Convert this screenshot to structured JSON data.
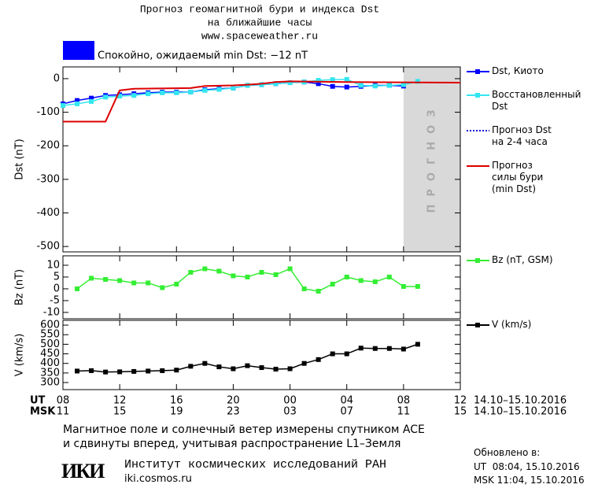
{
  "header": {
    "title": "Прогноз геомагнитной бури и индекса Dst",
    "subtitle": "на ближайшие часы",
    "url": "www.spaceweather.ru",
    "status": "Спокойно, ожидаемый min Dst: −12 nT",
    "status_color": "#0000ff"
  },
  "chart_data": [
    {
      "type": "line",
      "ylabel": "Dst (nT)",
      "xlim": [
        0,
        28
      ],
      "ylim": [
        -516,
        35
      ],
      "yticks": [
        0,
        -100,
        -200,
        -300,
        -400,
        -500
      ],
      "forecast_region": {
        "x": [
          24,
          28
        ],
        "label": "прогноз",
        "color": "#d9d9d9"
      },
      "series": [
        {
          "name": "Dst, Киото",
          "color": "#0000ff",
          "marker": true,
          "x": [
            0,
            1,
            2,
            3,
            4,
            5,
            6,
            7,
            8,
            9,
            10,
            11,
            12,
            13,
            14,
            15,
            16,
            17,
            18,
            19,
            20,
            21,
            22,
            23,
            24
          ],
          "values": [
            -75,
            -65,
            -58,
            -50,
            -48,
            -45,
            -42,
            -40,
            -40,
            -40,
            -33,
            -30,
            -28,
            -20,
            -18,
            -15,
            -12,
            -10,
            -15,
            -23,
            -25,
            -23,
            -20,
            -20,
            -22
          ]
        },
        {
          "name": "Восстановленный\nDst",
          "color": "#33e6f0",
          "marker": true,
          "x": [
            0,
            1,
            2,
            3,
            4,
            5,
            6,
            7,
            8,
            9,
            10,
            11,
            12,
            13,
            14,
            15,
            16,
            17,
            18,
            19,
            20,
            21,
            22,
            23,
            24,
            25
          ],
          "values": [
            -80,
            -75,
            -68,
            -55,
            -52,
            -50,
            -45,
            -42,
            -42,
            -40,
            -35,
            -32,
            -28,
            -20,
            -18,
            -15,
            -12,
            -10,
            -5,
            -3,
            -2,
            -20,
            -22,
            -20,
            -18,
            -8
          ]
        },
        {
          "name": "Прогноз Dst\nна 2-4 часа",
          "color": "#0000cc",
          "marker": false,
          "dash": true,
          "x": [],
          "values": []
        },
        {
          "name": "Прогноз\nсилы бури\n(min Dst)",
          "color": "#dd0000",
          "marker": false,
          "x": [
            0,
            3,
            4,
            5,
            9,
            10,
            12,
            13,
            14,
            15,
            16,
            20,
            28
          ],
          "values": [
            -128,
            -128,
            -35,
            -30,
            -28,
            -22,
            -20,
            -18,
            -15,
            -10,
            -8,
            -10,
            -12
          ]
        }
      ]
    },
    {
      "type": "line",
      "ylabel": "Bz (nT)",
      "xlim": [
        0,
        28
      ],
      "ylim": [
        -12.7,
        14
      ],
      "yticks": [
        10,
        5,
        0,
        -5,
        -10
      ],
      "series": [
        {
          "name": "Bz (nT, GSM)",
          "color": "#33ee33",
          "marker": true,
          "x": [
            1,
            2,
            3,
            4,
            5,
            6,
            7,
            8,
            9,
            10,
            11,
            12,
            13,
            14,
            15,
            16,
            17,
            18,
            19,
            20,
            21,
            22,
            23,
            24,
            25
          ],
          "values": [
            0,
            4.5,
            4,
            3.5,
            2.5,
            2.5,
            0.5,
            2,
            7,
            8.5,
            7.5,
            5.5,
            5,
            7,
            6,
            8.5,
            0,
            -1,
            2,
            5,
            3.5,
            3,
            5,
            1,
            1
          ]
        }
      ]
    },
    {
      "type": "line",
      "ylabel": "V (km/s)",
      "xlim": [
        0,
        28
      ],
      "ylim": [
        263,
        625
      ],
      "yticks": [
        600,
        550,
        500,
        450,
        400,
        350,
        300
      ],
      "xlabel": "UT",
      "x2label": "MSK",
      "date_range": "14.10–15.10.2016",
      "xticks": [
        {
          "value": 0,
          "label": "08"
        },
        {
          "value": 4,
          "label": "12"
        },
        {
          "value": 8,
          "label": "16"
        },
        {
          "value": 12,
          "label": "20"
        },
        {
          "value": 16,
          "label": "00"
        },
        {
          "value": 20,
          "label": "04"
        },
        {
          "value": 24,
          "label": "08"
        },
        {
          "value": 28,
          "label": "12"
        }
      ],
      "x2ticks": [
        {
          "value": 0,
          "label": "11"
        },
        {
          "value": 4,
          "label": "15"
        },
        {
          "value": 8,
          "label": "19"
        },
        {
          "value": 12,
          "label": "23"
        },
        {
          "value": 16,
          "label": "03"
        },
        {
          "value": 20,
          "label": "07"
        },
        {
          "value": 24,
          "label": "11"
        },
        {
          "value": 28,
          "label": "15"
        }
      ],
      "series": [
        {
          "name": "V (km/s)",
          "color": "#000000",
          "marker": true,
          "x": [
            1,
            2,
            3,
            4,
            5,
            6,
            7,
            8,
            9,
            10,
            11,
            12,
            13,
            14,
            15,
            16,
            17,
            18,
            19,
            20,
            21,
            22,
            23,
            24,
            25
          ],
          "values": [
            360,
            362,
            355,
            356,
            358,
            360,
            362,
            365,
            385,
            400,
            382,
            372,
            388,
            378,
            370,
            372,
            400,
            420,
            450,
            450,
            480,
            478,
            478,
            475,
            500
          ]
        }
      ]
    }
  ],
  "footer": {
    "note": [
      "Магнитное поле и солнечный ветер измерены спутником ACE",
      "и сдвинуты вперед, учитывая распространение L1–Земля"
    ],
    "logo": "ИКИ",
    "institute": "Институт космических исследований РАН",
    "institute_url": "iki.cosmos.ru",
    "updated": "Обновлено в:",
    "updated_ut": "UT  08:04, 15.10.2016",
    "updated_msk": "MSK 11:04, 15.10.2016"
  }
}
